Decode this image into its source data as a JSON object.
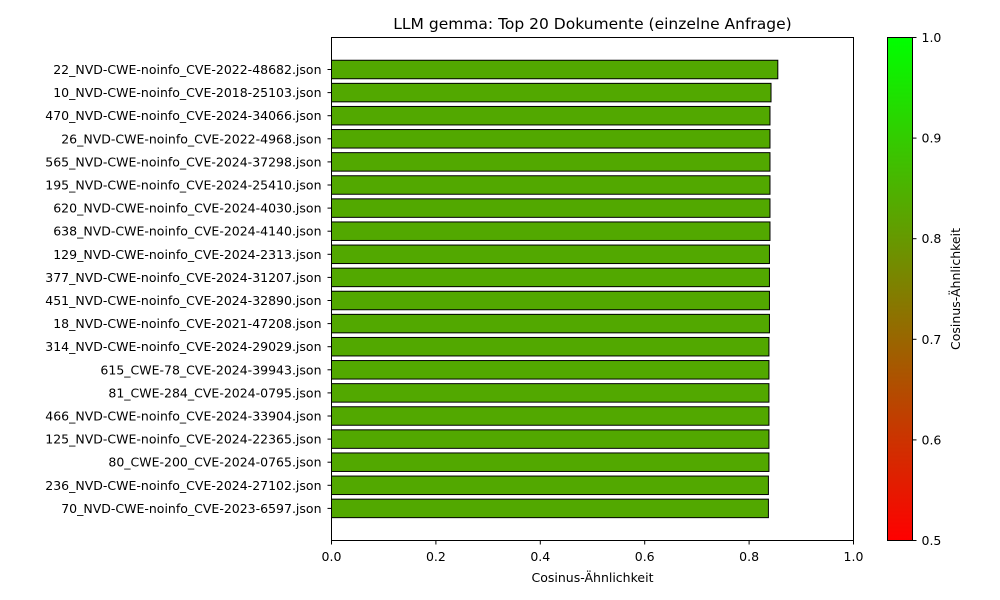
{
  "chart_data": {
    "type": "bar",
    "orientation": "horizontal",
    "title": "LLM gemma: Top 20 Dokumente (einzelne Anfrage)",
    "xlabel": "Cosinus-Ähnlichkeit",
    "ylabel": "",
    "xlim": [
      0.0,
      1.0
    ],
    "xticks": [
      "0.0",
      "0.2",
      "0.4",
      "0.6",
      "0.8",
      "1.0"
    ],
    "grid": false,
    "categories": [
      "22_NVD-CWE-noinfo_CVE-2022-48682.json",
      "10_NVD-CWE-noinfo_CVE-2018-25103.json",
      "470_NVD-CWE-noinfo_CVE-2024-34066.json",
      "26_NVD-CWE-noinfo_CVE-2022-4968.json",
      "565_NVD-CWE-noinfo_CVE-2024-37298.json",
      "195_NVD-CWE-noinfo_CVE-2024-25410.json",
      "620_NVD-CWE-noinfo_CVE-2024-4030.json",
      "638_NVD-CWE-noinfo_CVE-2024-4140.json",
      "129_NVD-CWE-noinfo_CVE-2024-2313.json",
      "377_NVD-CWE-noinfo_CVE-2024-31207.json",
      "451_NVD-CWE-noinfo_CVE-2024-32890.json",
      "18_NVD-CWE-noinfo_CVE-2021-47208.json",
      "314_NVD-CWE-noinfo_CVE-2024-29029.json",
      "615_CWE-78_CVE-2024-39943.json",
      "81_CWE-284_CVE-2024-0795.json",
      "466_NVD-CWE-noinfo_CVE-2024-33904.json",
      "125_NVD-CWE-noinfo_CVE-2024-22365.json",
      "80_CWE-200_CVE-2024-0765.json",
      "236_NVD-CWE-noinfo_CVE-2024-27102.json",
      "70_NVD-CWE-noinfo_CVE-2023-6597.json"
    ],
    "values": [
      0.855,
      0.842,
      0.84,
      0.84,
      0.84,
      0.84,
      0.84,
      0.84,
      0.839,
      0.839,
      0.839,
      0.839,
      0.838,
      0.838,
      0.838,
      0.838,
      0.838,
      0.838,
      0.837,
      0.837
    ],
    "bar_color": "#52a800",
    "bar_edge_color": "#000000",
    "colorbar": {
      "label": "Cosinus-Ähnlichkeit",
      "range": [
        0.5,
        1.0
      ],
      "ticks": [
        "0.5",
        "0.6",
        "0.7",
        "0.8",
        "0.9",
        "1.0"
      ],
      "color_low": "#ff0000",
      "color_high": "#00ff00"
    }
  }
}
